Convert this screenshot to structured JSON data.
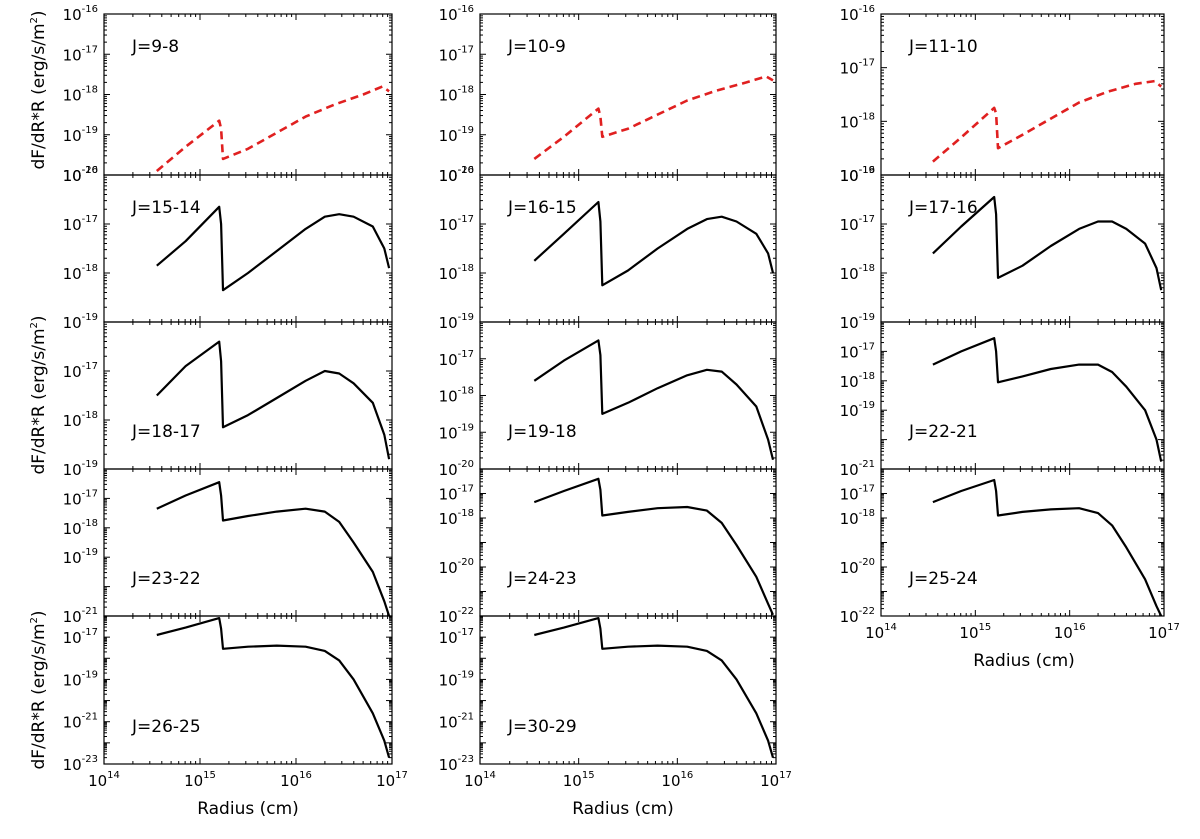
{
  "figure": {
    "ylabel_html": "dF/dR*R (erg/s/m",
    "ylabel_sup": "2",
    "ylabel_close": ")",
    "xlabel": "Radius (cm)",
    "log_base_label": "10"
  },
  "chart_data": [
    {
      "type": "line",
      "label": "J=9-8",
      "style": "dashed",
      "color": "#e02020",
      "xlim": [
        14,
        17
      ],
      "ylim": [
        -20,
        -16
      ],
      "yticks": [
        -16,
        -17,
        -18,
        -19,
        -20
      ],
      "xticks": [],
      "legend_pos": "top-left",
      "series": [
        {
          "name": "J=9-8",
          "x": [
            14.55,
            14.85,
            15.2,
            15.22,
            15.24,
            15.5,
            15.8,
            16.1,
            16.4,
            16.7,
            16.9,
            16.97
          ],
          "y": [
            -19.9,
            -19.3,
            -18.65,
            -18.85,
            -19.6,
            -19.35,
            -18.95,
            -18.55,
            -18.25,
            -18.0,
            -17.8,
            -17.92
          ]
        }
      ]
    },
    {
      "type": "line",
      "label": "J=10-9",
      "style": "dashed",
      "color": "#e02020",
      "xlim": [
        14,
        17
      ],
      "ylim": [
        -20,
        -16
      ],
      "yticks": [
        -16,
        -17,
        -18,
        -19,
        -20
      ],
      "xticks": [],
      "legend_pos": "top-left",
      "series": [
        {
          "name": "J=10-9",
          "x": [
            14.55,
            14.85,
            15.2,
            15.22,
            15.24,
            15.5,
            15.8,
            16.1,
            16.4,
            16.7,
            16.9,
            16.97
          ],
          "y": [
            -19.6,
            -19.05,
            -18.35,
            -18.55,
            -19.05,
            -18.85,
            -18.5,
            -18.15,
            -17.9,
            -17.7,
            -17.55,
            -17.65
          ]
        }
      ]
    },
    {
      "type": "line",
      "label": "J=11-10",
      "style": "dashed",
      "color": "#e02020",
      "xlim": [
        14,
        17
      ],
      "ylim": [
        -19,
        -16
      ],
      "yticks": [
        -16,
        -17,
        -18,
        -19
      ],
      "xticks": [],
      "legend_pos": "top-left",
      "series": [
        {
          "name": "J=11-10",
          "x": [
            14.55,
            14.85,
            15.2,
            15.22,
            15.24,
            15.5,
            15.8,
            16.1,
            16.4,
            16.7,
            16.9,
            16.97
          ],
          "y": [
            -18.75,
            -18.3,
            -17.75,
            -17.85,
            -18.5,
            -18.25,
            -17.95,
            -17.65,
            -17.45,
            -17.3,
            -17.25,
            -17.35
          ]
        }
      ]
    },
    {
      "type": "line",
      "label": "J=15-14",
      "style": "solid",
      "color": "#000000",
      "xlim": [
        14,
        17
      ],
      "ylim": [
        -19,
        -16
      ],
      "yticks": [
        -16,
        -17,
        -18,
        -19
      ],
      "xticks": [],
      "legend_pos": "top-left",
      "series": [
        {
          "name": "J=15-14",
          "x": [
            14.55,
            14.85,
            15.2,
            15.22,
            15.24,
            15.5,
            15.8,
            16.1,
            16.3,
            16.45,
            16.6,
            16.8,
            16.92,
            16.97
          ],
          "y": [
            -17.85,
            -17.35,
            -16.65,
            -17.0,
            -18.35,
            -18.0,
            -17.55,
            -17.1,
            -16.85,
            -16.8,
            -16.85,
            -17.05,
            -17.5,
            -17.9
          ]
        }
      ]
    },
    {
      "type": "line",
      "label": "J=16-15",
      "style": "solid",
      "color": "#000000",
      "xlim": [
        14,
        17
      ],
      "ylim": [
        -19,
        -16
      ],
      "yticks": [
        -16,
        -17,
        -18,
        -19
      ],
      "xticks": [],
      "legend_pos": "top-left",
      "series": [
        {
          "name": "J=16-15",
          "x": [
            14.55,
            14.85,
            15.2,
            15.22,
            15.24,
            15.5,
            15.8,
            16.1,
            16.3,
            16.45,
            16.6,
            16.8,
            16.92,
            16.97
          ],
          "y": [
            -17.75,
            -17.2,
            -16.55,
            -16.95,
            -18.25,
            -17.95,
            -17.5,
            -17.1,
            -16.9,
            -16.85,
            -16.95,
            -17.2,
            -17.6,
            -18.0
          ]
        }
      ]
    },
    {
      "type": "line",
      "label": "J=17-16",
      "style": "solid",
      "color": "#000000",
      "xlim": [
        14,
        17
      ],
      "ylim": [
        -19,
        -16
      ],
      "yticks": [
        -16,
        -17,
        -18,
        -19
      ],
      "xticks": [],
      "legend_pos": "top-left",
      "series": [
        {
          "name": "J=17-16",
          "x": [
            14.55,
            14.85,
            15.2,
            15.22,
            15.24,
            15.5,
            15.8,
            16.1,
            16.3,
            16.45,
            16.6,
            16.8,
            16.92,
            16.97
          ],
          "y": [
            -17.6,
            -17.05,
            -16.45,
            -16.8,
            -18.1,
            -17.85,
            -17.45,
            -17.1,
            -16.95,
            -16.95,
            -17.1,
            -17.4,
            -17.9,
            -18.35
          ]
        }
      ]
    },
    {
      "type": "line",
      "label": "J=18-17",
      "style": "solid",
      "color": "#000000",
      "xlim": [
        14,
        17
      ],
      "ylim": [
        -19,
        -16
      ],
      "yticks": [
        -17,
        -18,
        -19
      ],
      "xticks": [],
      "legend_pos": "bottom-left",
      "series": [
        {
          "name": "J=18-17",
          "x": [
            14.55,
            14.85,
            15.2,
            15.22,
            15.24,
            15.5,
            15.8,
            16.1,
            16.3,
            16.45,
            16.6,
            16.8,
            16.92,
            16.97
          ],
          "y": [
            -17.5,
            -16.9,
            -16.4,
            -16.8,
            -18.15,
            -17.9,
            -17.55,
            -17.2,
            -17.0,
            -17.05,
            -17.25,
            -17.65,
            -18.3,
            -18.8
          ]
        }
      ]
    },
    {
      "type": "line",
      "label": "J=19-18",
      "style": "solid",
      "color": "#000000",
      "xlim": [
        14,
        17
      ],
      "ylim": [
        -20,
        -16
      ],
      "yticks": [
        -17,
        -18,
        -19,
        -20
      ],
      "xticks": [],
      "legend_pos": "bottom-left",
      "series": [
        {
          "name": "J=19-18",
          "x": [
            14.55,
            14.85,
            15.2,
            15.22,
            15.24,
            15.5,
            15.8,
            16.1,
            16.3,
            16.45,
            16.6,
            16.8,
            16.92,
            16.97
          ],
          "y": [
            -17.6,
            -17.05,
            -16.5,
            -16.9,
            -18.5,
            -18.2,
            -17.8,
            -17.45,
            -17.3,
            -17.35,
            -17.7,
            -18.3,
            -19.2,
            -19.75
          ]
        }
      ]
    },
    {
      "type": "line",
      "label": "J=22-21",
      "style": "solid",
      "color": "#000000",
      "xlim": [
        14,
        17
      ],
      "ylim": [
        -21,
        -16
      ],
      "yticks": [
        -17,
        -18,
        -19,
        -21
      ],
      "xticks": [],
      "legend_pos": "bottom-left",
      "series": [
        {
          "name": "J=22-21",
          "x": [
            14.55,
            14.85,
            15.2,
            15.22,
            15.24,
            15.5,
            15.8,
            16.1,
            16.3,
            16.45,
            16.6,
            16.8,
            16.92,
            16.97
          ],
          "y": [
            -17.45,
            -17.0,
            -16.55,
            -17.0,
            -18.05,
            -17.85,
            -17.6,
            -17.45,
            -17.45,
            -17.7,
            -18.2,
            -19.0,
            -20.0,
            -20.75
          ]
        }
      ]
    },
    {
      "type": "line",
      "label": "J=23-22",
      "style": "solid",
      "color": "#000000",
      "xlim": [
        14,
        17
      ],
      "ylim": [
        -21,
        -16
      ],
      "yticks": [
        -17,
        -18,
        -19,
        -21
      ],
      "xticks": [],
      "legend_pos": "bottom-left",
      "series": [
        {
          "name": "J=23-22",
          "x": [
            14.55,
            14.85,
            15.2,
            15.22,
            15.24,
            15.5,
            15.8,
            16.1,
            16.3,
            16.45,
            16.6,
            16.8,
            16.92,
            16.97
          ],
          "y": [
            -17.35,
            -16.9,
            -16.45,
            -16.9,
            -17.75,
            -17.6,
            -17.45,
            -17.35,
            -17.45,
            -17.8,
            -18.5,
            -19.5,
            -20.5,
            -21.0
          ]
        }
      ]
    },
    {
      "type": "line",
      "label": "J=24-23",
      "style": "solid",
      "color": "#000000",
      "xlim": [
        14,
        17
      ],
      "ylim": [
        -22,
        -16
      ],
      "yticks": [
        -17,
        -18,
        -20,
        -22
      ],
      "xticks": [],
      "legend_pos": "bottom-left",
      "series": [
        {
          "name": "J=24-23",
          "x": [
            14.55,
            14.85,
            15.2,
            15.22,
            15.24,
            15.5,
            15.8,
            16.1,
            16.3,
            16.45,
            16.6,
            16.8,
            16.92,
            16.97
          ],
          "y": [
            -17.35,
            -16.9,
            -16.4,
            -16.85,
            -17.9,
            -17.75,
            -17.6,
            -17.55,
            -17.7,
            -18.2,
            -19.1,
            -20.4,
            -21.5,
            -21.95
          ]
        }
      ]
    },
    {
      "type": "line",
      "label": "J=25-24",
      "style": "solid",
      "color": "#000000",
      "xlim": [
        14,
        17
      ],
      "ylim": [
        -22,
        -16
      ],
      "yticks": [
        -17,
        -18,
        -20,
        -22
      ],
      "xticks": [
        14,
        15,
        16,
        17
      ],
      "legend_pos": "bottom-left",
      "series": [
        {
          "name": "J=25-24",
          "x": [
            14.55,
            14.85,
            15.2,
            15.22,
            15.24,
            15.5,
            15.8,
            16.1,
            16.3,
            16.45,
            16.6,
            16.8,
            16.92,
            16.97
          ],
          "y": [
            -17.35,
            -16.9,
            -16.45,
            -16.9,
            -17.9,
            -17.75,
            -17.65,
            -17.6,
            -17.8,
            -18.3,
            -19.2,
            -20.5,
            -21.6,
            -22.0
          ]
        }
      ]
    },
    {
      "type": "line",
      "label": "J=26-25",
      "style": "solid",
      "color": "#000000",
      "xlim": [
        14,
        17
      ],
      "ylim": [
        -23,
        -16
      ],
      "yticks": [
        -17,
        -19,
        -21,
        -23
      ],
      "xticks": [
        14,
        15,
        16,
        17
      ],
      "legend_pos": "bottom-left",
      "series": [
        {
          "name": "J=26-25",
          "x": [
            14.55,
            14.85,
            15.2,
            15.22,
            15.24,
            15.5,
            15.8,
            16.1,
            16.3,
            16.45,
            16.6,
            16.8,
            16.92,
            16.97
          ],
          "y": [
            -16.9,
            -16.55,
            -16.1,
            -16.6,
            -17.55,
            -17.45,
            -17.4,
            -17.45,
            -17.65,
            -18.1,
            -19.0,
            -20.6,
            -21.9,
            -22.7
          ]
        }
      ]
    },
    {
      "type": "line",
      "label": "J=30-29",
      "style": "solid",
      "color": "#000000",
      "xlim": [
        14,
        17
      ],
      "ylim": [
        -23,
        -16
      ],
      "yticks": [
        -17,
        -19,
        -21,
        -23
      ],
      "xticks": [
        14,
        15,
        16,
        17
      ],
      "legend_pos": "bottom-left",
      "series": [
        {
          "name": "J=30-29",
          "x": [
            14.55,
            14.85,
            15.2,
            15.22,
            15.24,
            15.5,
            15.8,
            16.1,
            16.3,
            16.45,
            16.6,
            16.8,
            16.92,
            16.97
          ],
          "y": [
            -16.9,
            -16.55,
            -16.1,
            -16.6,
            -17.55,
            -17.45,
            -17.4,
            -17.45,
            -17.65,
            -18.1,
            -19.0,
            -20.6,
            -21.9,
            -22.7
          ]
        }
      ]
    }
  ]
}
